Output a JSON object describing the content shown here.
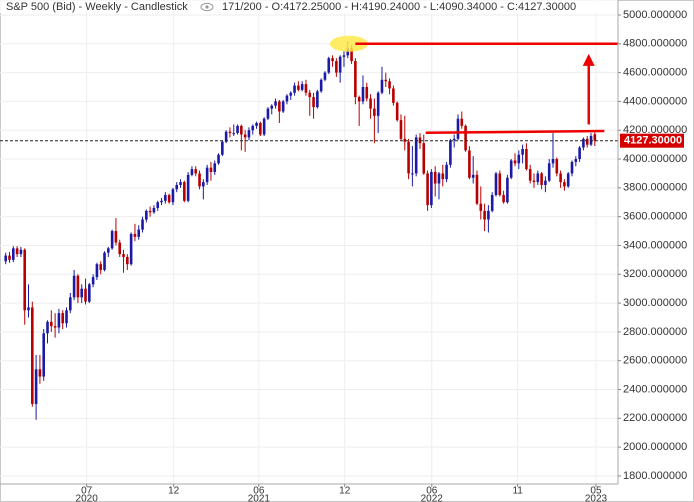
{
  "chart_data": {
    "type": "candlestick",
    "title": "S&P 500 (Bid) - Weekly - Candlestick",
    "info": "171/200 - O:4172.25000 - H:4190.24000 - L:4090.34000 - C:4127.30000",
    "up_color": "#1a1aa6",
    "down_color": "#b80000",
    "candles": [
      [
        3290,
        3350,
        3270,
        3330
      ],
      [
        3330,
        3355,
        3280,
        3300
      ],
      [
        3300,
        3395,
        3285,
        3380
      ],
      [
        3380,
        3395,
        3320,
        3340
      ],
      [
        3340,
        3390,
        3320,
        3370
      ],
      [
        3370,
        3380,
        2850,
        2950
      ],
      [
        2950,
        3130,
        2900,
        2970
      ],
      [
        2970,
        3010,
        2280,
        2300
      ],
      [
        2300,
        2640,
        2190,
        2540
      ],
      [
        2540,
        2640,
        2440,
        2490
      ],
      [
        2490,
        2820,
        2460,
        2790
      ],
      [
        2790,
        2880,
        2720,
        2870
      ],
      [
        2870,
        2950,
        2800,
        2840
      ],
      [
        2840,
        2930,
        2760,
        2830
      ],
      [
        2830,
        2960,
        2790,
        2930
      ],
      [
        2930,
        2950,
        2820,
        2860
      ],
      [
        2860,
        2970,
        2830,
        2950
      ],
      [
        2950,
        3070,
        2930,
        3040
      ],
      [
        3040,
        3230,
        3020,
        3190
      ],
      [
        3190,
        3200,
        3000,
        3040
      ],
      [
        3040,
        3130,
        3000,
        3100
      ],
      [
        3100,
        3170,
        2990,
        3010
      ],
      [
        3010,
        3140,
        3000,
        3130
      ],
      [
        3130,
        3200,
        3110,
        3180
      ],
      [
        3180,
        3280,
        3160,
        3270
      ],
      [
        3270,
        3290,
        3200,
        3230
      ],
      [
        3230,
        3360,
        3220,
        3350
      ],
      [
        3350,
        3390,
        3320,
        3380
      ],
      [
        3380,
        3510,
        3370,
        3500
      ],
      [
        3500,
        3590,
        3400,
        3420
      ],
      [
        3420,
        3440,
        3320,
        3340
      ],
      [
        3340,
        3370,
        3210,
        3320
      ],
      [
        3320,
        3340,
        3230,
        3270
      ],
      [
        3270,
        3490,
        3260,
        3480
      ],
      [
        3480,
        3550,
        3430,
        3460
      ],
      [
        3460,
        3540,
        3440,
        3510
      ],
      [
        3510,
        3600,
        3490,
        3580
      ],
      [
        3580,
        3650,
        3560,
        3640
      ],
      [
        3640,
        3670,
        3600,
        3630
      ],
      [
        3630,
        3680,
        3620,
        3660
      ],
      [
        3660,
        3710,
        3640,
        3700
      ],
      [
        3700,
        3730,
        3680,
        3710
      ],
      [
        3710,
        3770,
        3690,
        3750
      ],
      [
        3750,
        3760,
        3690,
        3700
      ],
      [
        3700,
        3800,
        3680,
        3790
      ],
      [
        3790,
        3840,
        3770,
        3820
      ],
      [
        3820,
        3860,
        3800,
        3840
      ],
      [
        3840,
        3850,
        3700,
        3710
      ],
      [
        3710,
        3910,
        3700,
        3890
      ],
      [
        3890,
        3950,
        3880,
        3930
      ],
      [
        3930,
        3950,
        3880,
        3900
      ],
      [
        3900,
        3920,
        3790,
        3810
      ],
      [
        3810,
        3860,
        3720,
        3840
      ],
      [
        3840,
        3960,
        3820,
        3940
      ],
      [
        3940,
        3980,
        3850,
        3910
      ],
      [
        3910,
        3990,
        3890,
        3970
      ],
      [
        3970,
        4040,
        3960,
        4030
      ],
      [
        4030,
        4130,
        4020,
        4120
      ],
      [
        4120,
        4200,
        4110,
        4190
      ],
      [
        4190,
        4220,
        4150,
        4180
      ],
      [
        4180,
        4240,
        4160,
        4180
      ],
      [
        4180,
        4240,
        4170,
        4230
      ],
      [
        4230,
        4240,
        4060,
        4170
      ],
      [
        4170,
        4200,
        4050,
        4150
      ],
      [
        4150,
        4220,
        4130,
        4200
      ],
      [
        4200,
        4240,
        4170,
        4230
      ],
      [
        4230,
        4260,
        4210,
        4250
      ],
      [
        4250,
        4260,
        4160,
        4170
      ],
      [
        4170,
        4290,
        4160,
        4280
      ],
      [
        4280,
        4360,
        4270,
        4350
      ],
      [
        4350,
        4380,
        4310,
        4370
      ],
      [
        4370,
        4420,
        4350,
        4400
      ],
      [
        4400,
        4410,
        4250,
        4330
      ],
      [
        4330,
        4410,
        4320,
        4400
      ],
      [
        4400,
        4450,
        4380,
        4440
      ],
      [
        4440,
        4470,
        4410,
        4460
      ],
      [
        4460,
        4530,
        4440,
        4510
      ],
      [
        4510,
        4540,
        4470,
        4480
      ],
      [
        4480,
        4540,
        4470,
        4520
      ],
      [
        4520,
        4550,
        4440,
        4460
      ],
      [
        4460,
        4480,
        4300,
        4430
      ],
      [
        4430,
        4460,
        4280,
        4360
      ],
      [
        4360,
        4480,
        4350,
        4470
      ],
      [
        4470,
        4560,
        4460,
        4550
      ],
      [
        4550,
        4610,
        4540,
        4600
      ],
      [
        4600,
        4710,
        4590,
        4700
      ],
      [
        4700,
        4720,
        4640,
        4680
      ],
      [
        4680,
        4700,
        4570,
        4600
      ],
      [
        4600,
        4720,
        4530,
        4710
      ],
      [
        4710,
        4750,
        4640,
        4720
      ],
      [
        4720,
        4820,
        4700,
        4770
      ],
      [
        4770,
        4790,
        4660,
        4680
      ],
      [
        4680,
        4700,
        4380,
        4430
      ],
      [
        4430,
        4440,
        4230,
        4400
      ],
      [
        4400,
        4580,
        4380,
        4500
      ],
      [
        4500,
        4530,
        4400,
        4420
      ],
      [
        4420,
        4450,
        4280,
        4350
      ],
      [
        4350,
        4420,
        4110,
        4300
      ],
      [
        4300,
        4470,
        4180,
        4460
      ],
      [
        4460,
        4640,
        4450,
        4550
      ],
      [
        4550,
        4600,
        4500,
        4540
      ],
      [
        4540,
        4560,
        4450,
        4490
      ],
      [
        4490,
        4510,
        4370,
        4390
      ],
      [
        4390,
        4400,
        4260,
        4270
      ],
      [
        4270,
        4310,
        4130,
        4140
      ],
      [
        4140,
        4300,
        4060,
        4120
      ],
      [
        4120,
        4140,
        3860,
        3900
      ],
      [
        3900,
        4090,
        3810,
        3900
      ],
      [
        3900,
        4170,
        3880,
        4150
      ],
      [
        4150,
        4180,
        4070,
        4110
      ],
      [
        4110,
        4170,
        3890,
        3900
      ],
      [
        3900,
        3920,
        3640,
        3680
      ],
      [
        3680,
        3930,
        3660,
        3910
      ],
      [
        3910,
        3950,
        3740,
        3830
      ],
      [
        3830,
        3910,
        3720,
        3900
      ],
      [
        3900,
        3960,
        3810,
        3860
      ],
      [
        3860,
        3980,
        3840,
        3960
      ],
      [
        3960,
        4140,
        3940,
        4130
      ],
      [
        4130,
        4170,
        4080,
        4140
      ],
      [
        4140,
        4310,
        4130,
        4280
      ],
      [
        4280,
        4330,
        4210,
        4230
      ],
      [
        4230,
        4240,
        4050,
        4060
      ],
      [
        4060,
        4090,
        3860,
        3870
      ],
      [
        3870,
        4020,
        3830,
        3890
      ],
      [
        3890,
        3920,
        3680,
        3690
      ],
      [
        3690,
        3810,
        3580,
        3640
      ],
      [
        3640,
        3690,
        3500,
        3580
      ],
      [
        3580,
        3680,
        3490,
        3640
      ],
      [
        3640,
        3770,
        3630,
        3750
      ],
      [
        3750,
        3910,
        3740,
        3900
      ],
      [
        3900,
        3920,
        3740,
        3750
      ],
      [
        3750,
        3780,
        3690,
        3700
      ],
      [
        3700,
        3890,
        3690,
        3870
      ],
      [
        3870,
        4000,
        3860,
        3990
      ],
      [
        3990,
        4040,
        3950,
        3970
      ],
      [
        3970,
        4060,
        3930,
        4030
      ],
      [
        4030,
        4100,
        3970,
        4070
      ],
      [
        4070,
        4110,
        3920,
        3930
      ],
      [
        3930,
        3960,
        3830,
        3850
      ],
      [
        3850,
        3900,
        3800,
        3840
      ],
      [
        3840,
        3920,
        3820,
        3900
      ],
      [
        3900,
        3910,
        3790,
        3820
      ],
      [
        3820,
        3880,
        3770,
        3850
      ],
      [
        3850,
        4000,
        3840,
        3970
      ],
      [
        3970,
        4180,
        3940,
        4000
      ],
      [
        4000,
        4010,
        3880,
        3900
      ],
      [
        3900,
        3920,
        3800,
        3840
      ],
      [
        3840,
        3860,
        3780,
        3810
      ],
      [
        3810,
        3910,
        3800,
        3900
      ],
      [
        3900,
        3990,
        3880,
        3980
      ],
      [
        3980,
        4020,
        3950,
        4000
      ],
      [
        4000,
        4090,
        3980,
        4080
      ],
      [
        4080,
        4150,
        4060,
        4140
      ],
      [
        4140,
        4160,
        4080,
        4100
      ],
      [
        4100,
        4180,
        4090,
        4160
      ],
      [
        4172.25,
        4190.24,
        4090.34,
        4127.3
      ]
    ],
    "xlim": [
      -1.5,
      161.1
    ],
    "ylim": [
      1744,
      5104
    ],
    "xticks": [
      {
        "value": 21.3,
        "label": "07"
      },
      {
        "value": 44.2,
        "label": "12"
      },
      {
        "value": 66.6,
        "label": "06"
      },
      {
        "value": 89.2,
        "label": "12"
      },
      {
        "value": 112.1,
        "label": "06"
      },
      {
        "value": 134.7,
        "label": "11"
      },
      {
        "value": 155.3,
        "label": "05"
      }
    ],
    "x_year_labels": [
      {
        "value": 21.3,
        "label": "2020"
      },
      {
        "value": 66.6,
        "label": "2021"
      },
      {
        "value": 112.1,
        "label": "2022"
      },
      {
        "value": 155.3,
        "label": "2023"
      }
    ],
    "yticks": [
      {
        "value": 1800,
        "label": "1800.000000"
      },
      {
        "value": 2000,
        "label": "2000.000000"
      },
      {
        "value": 2200,
        "label": "2200.000000"
      },
      {
        "value": 2400,
        "label": "2400.000000"
      },
      {
        "value": 2600,
        "label": "2600.000000"
      },
      {
        "value": 2800,
        "label": "2800.000000"
      },
      {
        "value": 3000,
        "label": "3000.000000"
      },
      {
        "value": 3200,
        "label": "3200.000000"
      },
      {
        "value": 3400,
        "label": "3400.000000"
      },
      {
        "value": 3600,
        "label": "3600.000000"
      },
      {
        "value": 3800,
        "label": "3800.000000"
      },
      {
        "value": 4000,
        "label": "4000.000000"
      },
      {
        "value": 4200,
        "label": "4200.000000"
      },
      {
        "value": 4400,
        "label": "4400.000000"
      },
      {
        "value": 4600,
        "label": "4600.000000"
      },
      {
        "value": 4800,
        "label": "4800.000000"
      },
      {
        "value": 5000,
        "label": "5000.000000"
      }
    ],
    "last_price": {
      "value": 4127.3,
      "label": "4127.30000",
      "color": "#d40000"
    },
    "grid": true,
    "annotations": {
      "color": "#ee0000",
      "target_line": {
        "x": [
          92,
          161.1
        ],
        "y": [
          4800,
          4800
        ]
      },
      "neckline": {
        "x": [
          110.5,
          157.5
        ],
        "y": [
          4182,
          4195
        ]
      },
      "arrow": {
        "x": [
          153.4,
          153.4
        ],
        "y": [
          4240,
          4730
        ]
      },
      "highlight": {
        "x": 90.3,
        "y": 4800,
        "color": "#ffe94a"
      }
    }
  }
}
